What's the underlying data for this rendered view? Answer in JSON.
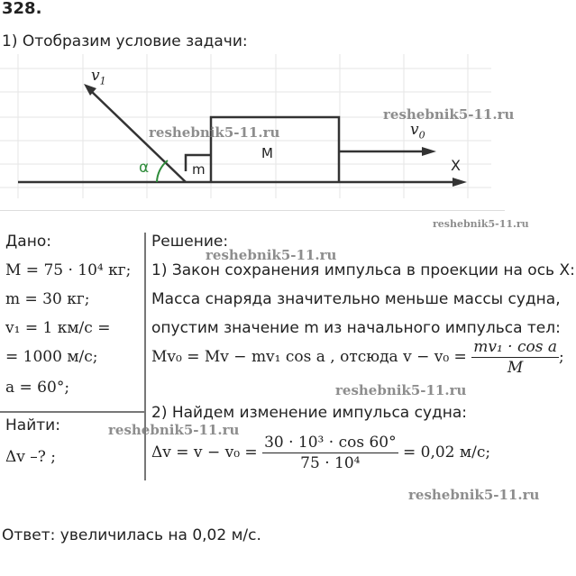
{
  "problem_number": "328.",
  "step_heading": "1) Отобразим условие задачи:",
  "diagram": {
    "label_v1": "v",
    "label_v1_sub": "1",
    "label_v0": "v",
    "label_v0_sub": "0",
    "label_alpha": "α",
    "label_m": "m",
    "label_M": "M",
    "label_axis": "X",
    "angle_color": "#2e8b3a"
  },
  "given": {
    "heading": "Дано:",
    "lines": [
      "M = 75 · 10⁴ кг;",
      "m = 30 кг;",
      "v₁ = 1 км/с =",
      "= 1000 м/с;",
      "a = 60°;"
    ],
    "find_heading": "Найти:",
    "find": "Δv –? ;"
  },
  "solution": {
    "heading": "Решение:",
    "step1": "1) Закон сохранения импульса в проекции на ось X:",
    "text1": "Масса снаряда значительно меньше массы судна,",
    "text2": "опустим значение m из начального импульса тел:",
    "eq1_left": "Mv₀ = Mv − mv₁ cos a , отсюда  v − v₀ =",
    "eq1_num": "mv₁ · cos a",
    "eq1_den": "M",
    "eq1_end": ";",
    "step2": "2) Найдем изменение импульса судна:",
    "eq2_left": "Δv = v − v₀ =",
    "eq2_num": "30 · 10³ · cos 60°",
    "eq2_den": "75 · 10⁴",
    "eq2_right": "= 0,02 м/с;"
  },
  "answer": "Ответ:  увеличилась на 0,02 м/с.",
  "watermark": "reshebnik5-11.ru"
}
